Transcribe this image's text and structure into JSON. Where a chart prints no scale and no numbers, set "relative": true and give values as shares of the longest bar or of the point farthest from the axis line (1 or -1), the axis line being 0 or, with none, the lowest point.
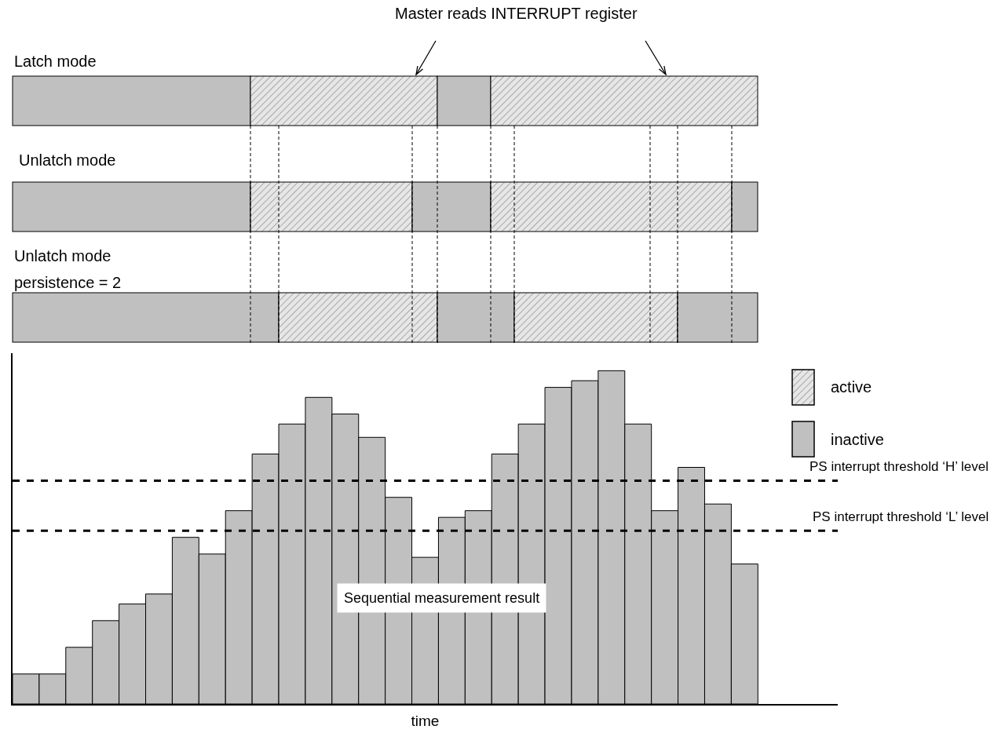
{
  "chart_data": [
    {
      "type": "other",
      "annotations": [
        "Master reads INTERRUPT register",
        "Latch mode",
        "Unlatch mode",
        "Unlatch mode persistence = 2",
        "active",
        "inactive"
      ]
    },
    {
      "type": "bar",
      "relative": true,
      "color": "#c0c0c0",
      "xlabel": "time",
      "categories": [
        null,
        null,
        null,
        null,
        null,
        null,
        null,
        null,
        null,
        null,
        null,
        null,
        null,
        null,
        null,
        null,
        null,
        null,
        null,
        null,
        null,
        null,
        null,
        null,
        null,
        null,
        null,
        null
      ],
      "values": [
        0.09,
        0.09,
        0.17,
        0.25,
        0.3,
        0.33,
        0.5,
        0.45,
        0.58,
        0.75,
        0.84,
        0.92,
        0.87,
        0.8,
        0.62,
        0.44,
        0.56,
        0.58,
        0.75,
        0.84,
        0.95,
        0.97,
        1,
        0.84,
        0.58,
        0.71,
        0.6,
        0.42
      ],
      "ref_lines": [
        {
          "axis": "y",
          "value": 0.67,
          "label": "PS interrupt threshold ‘H’ level",
          "line_style": "dashed"
        },
        {
          "axis": "y",
          "value": 0.52,
          "label": "PS interrupt threshold ‘L’ level",
          "line_style": "dashed"
        }
      ],
      "annotations": [
        "Sequential measurement result"
      ],
      "grid": false
    }
  ]
}
